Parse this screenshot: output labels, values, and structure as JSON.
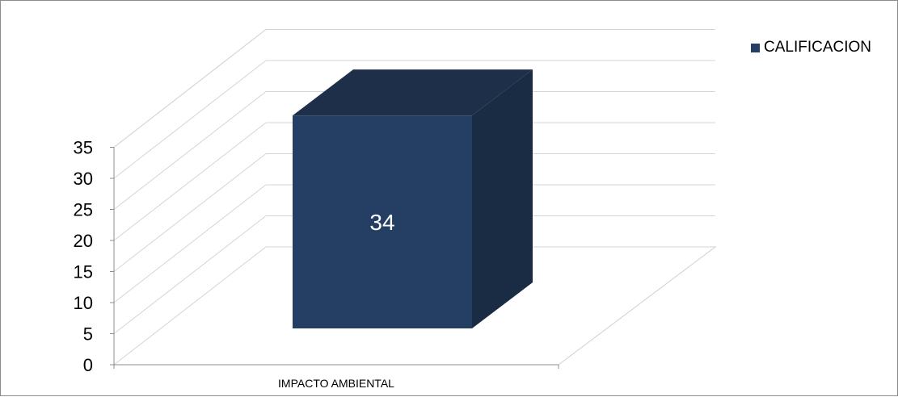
{
  "chart_data": {
    "type": "bar",
    "categories": [
      "IMPACTO AMBIENTAL"
    ],
    "series": [
      {
        "name": "CALIFICACION",
        "values": [
          34
        ],
        "color": "#243f63"
      }
    ],
    "ylim": [
      0,
      35
    ],
    "yticks": [
      0,
      5,
      10,
      15,
      20,
      25,
      30,
      35
    ],
    "data_labels": [
      "34"
    ],
    "grid": true,
    "legend": "top-right",
    "three_d": true
  }
}
